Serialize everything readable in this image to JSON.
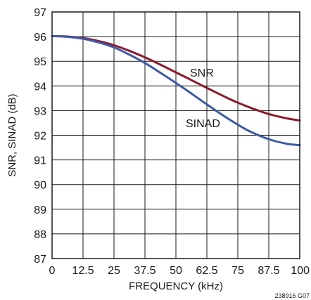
{
  "chart_data": {
    "type": "line",
    "xlabel": "FREQUENCY (kHz)",
    "ylabel": "SNR, SINAD (dB)",
    "xlim": [
      0,
      100
    ],
    "ylim": [
      87,
      97
    ],
    "x_ticks": [
      "0",
      "12.5",
      "25",
      "37.5",
      "50",
      "62.5",
      "75",
      "87.5",
      "100"
    ],
    "y_ticks": [
      "87",
      "88",
      "89",
      "90",
      "91",
      "92",
      "93",
      "94",
      "95",
      "96",
      "97"
    ],
    "grid": true,
    "figure_id": "238916 G07",
    "series": [
      {
        "name": "SNR",
        "color": "#8b1a2e",
        "x": [
          0,
          5,
          10,
          12.5,
          15,
          20,
          25,
          30,
          37.5,
          45,
          50,
          55,
          62.5,
          70,
          75,
          80,
          87.5,
          95,
          100
        ],
        "y": [
          96.02,
          96.01,
          95.97,
          95.94,
          95.9,
          95.79,
          95.65,
          95.47,
          95.16,
          94.8,
          94.55,
          94.3,
          93.92,
          93.55,
          93.32,
          93.12,
          92.86,
          92.68,
          92.6
        ]
      },
      {
        "name": "SINAD",
        "color": "#3e5aa6",
        "x": [
          0,
          5,
          10,
          12.5,
          15,
          20,
          25,
          30,
          37.5,
          45,
          50,
          55,
          62.5,
          70,
          75,
          80,
          87.5,
          95,
          100
        ],
        "y": [
          96.02,
          96.0,
          95.95,
          95.91,
          95.86,
          95.73,
          95.56,
          95.33,
          94.93,
          94.45,
          94.12,
          93.78,
          93.25,
          92.74,
          92.43,
          92.15,
          91.84,
          91.65,
          91.6
        ]
      }
    ]
  }
}
